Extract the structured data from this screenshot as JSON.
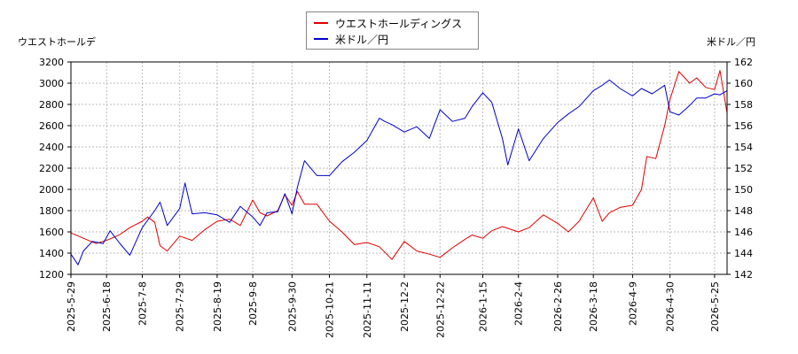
{
  "legend": {
    "series1": "ウエストホールディングス",
    "series2": "米ドル／円"
  },
  "colors": {
    "series1": "#dd0000",
    "series2": "#0000cc"
  },
  "chart_data": {
    "type": "line",
    "title": "",
    "ylabel_left": "ウエストホールデ",
    "ylabel_right": "米ドル／円",
    "ylim_left": [
      1200,
      3200
    ],
    "yticks_left": [
      1200,
      1400,
      1600,
      1800,
      2000,
      2200,
      2400,
      2600,
      2800,
      3000,
      3200
    ],
    "ylim_right": [
      142,
      162
    ],
    "yticks_right": [
      142,
      144,
      146,
      148,
      150,
      152,
      154,
      156,
      158,
      160,
      162
    ],
    "xlim": [
      "2025-05-29",
      "2026-06-01"
    ],
    "xticks": [
      "2025-5-29",
      "2025-6-18",
      "2025-7-8",
      "2025-7-29",
      "2025-8-19",
      "2025-9-8",
      "2025-9-30",
      "2025-10-21",
      "2025-11-11",
      "2025-12-2",
      "2025-12-22",
      "2026-1-15",
      "2026-2-4",
      "2026-2-26",
      "2026-3-18",
      "2026-4-9",
      "2026-4-30",
      "2026-5-25"
    ],
    "grid": true,
    "legend_position": "top-center",
    "series": [
      {
        "name": "ウエストホールディングス",
        "axis": "left",
        "points": [
          [
            "2025-05-29",
            1590
          ],
          [
            "2025-06-05",
            1540
          ],
          [
            "2025-06-12",
            1490
          ],
          [
            "2025-06-18",
            1520
          ],
          [
            "2025-06-25",
            1570
          ],
          [
            "2025-07-01",
            1640
          ],
          [
            "2025-07-08",
            1700
          ],
          [
            "2025-07-11",
            1740
          ],
          [
            "2025-07-15",
            1690
          ],
          [
            "2025-07-18",
            1470
          ],
          [
            "2025-07-22",
            1420
          ],
          [
            "2025-07-29",
            1560
          ],
          [
            "2025-08-05",
            1520
          ],
          [
            "2025-08-12",
            1620
          ],
          [
            "2025-08-19",
            1700
          ],
          [
            "2025-08-26",
            1720
          ],
          [
            "2025-09-01",
            1660
          ],
          [
            "2025-09-08",
            1900
          ],
          [
            "2025-09-12",
            1780
          ],
          [
            "2025-09-16",
            1750
          ],
          [
            "2025-09-22",
            1800
          ],
          [
            "2025-09-26",
            1950
          ],
          [
            "2025-09-30",
            1850
          ],
          [
            "2025-10-03",
            1980
          ],
          [
            "2025-10-07",
            1860
          ],
          [
            "2025-10-14",
            1860
          ],
          [
            "2025-10-21",
            1700
          ],
          [
            "2025-10-28",
            1600
          ],
          [
            "2025-11-04",
            1480
          ],
          [
            "2025-11-11",
            1500
          ],
          [
            "2025-11-18",
            1460
          ],
          [
            "2025-11-25",
            1340
          ],
          [
            "2025-12-02",
            1510
          ],
          [
            "2025-12-09",
            1420
          ],
          [
            "2025-12-16",
            1390
          ],
          [
            "2025-12-22",
            1360
          ],
          [
            "2025-12-29",
            1450
          ],
          [
            "2026-01-05",
            1530
          ],
          [
            "2026-01-09",
            1570
          ],
          [
            "2026-01-15",
            1540
          ],
          [
            "2026-01-20",
            1610
          ],
          [
            "2026-01-26",
            1650
          ],
          [
            "2026-02-04",
            1600
          ],
          [
            "2026-02-10",
            1640
          ],
          [
            "2026-02-18",
            1760
          ],
          [
            "2026-02-26",
            1680
          ],
          [
            "2026-03-04",
            1600
          ],
          [
            "2026-03-10",
            1700
          ],
          [
            "2026-03-18",
            1920
          ],
          [
            "2026-03-23",
            1700
          ],
          [
            "2026-03-27",
            1780
          ],
          [
            "2026-04-02",
            1830
          ],
          [
            "2026-04-09",
            1850
          ],
          [
            "2026-04-14",
            2000
          ],
          [
            "2026-04-17",
            2310
          ],
          [
            "2026-04-22",
            2290
          ],
          [
            "2026-04-27",
            2600
          ],
          [
            "2026-04-30",
            2850
          ],
          [
            "2026-05-05",
            3110
          ],
          [
            "2026-05-11",
            3000
          ],
          [
            "2026-05-15",
            3050
          ],
          [
            "2026-05-20",
            2960
          ],
          [
            "2026-05-25",
            2940
          ],
          [
            "2026-05-28",
            3120
          ],
          [
            "2026-06-01",
            2720
          ]
        ]
      },
      {
        "name": "米ドル／円",
        "axis": "right",
        "points": [
          [
            "2025-05-29",
            143.9
          ],
          [
            "2025-06-02",
            142.9
          ],
          [
            "2025-06-05",
            144.2
          ],
          [
            "2025-06-10",
            145.1
          ],
          [
            "2025-06-16",
            144.9
          ],
          [
            "2025-06-20",
            146.1
          ],
          [
            "2025-06-25",
            145.0
          ],
          [
            "2025-07-01",
            143.8
          ],
          [
            "2025-07-08",
            146.4
          ],
          [
            "2025-07-15",
            148.0
          ],
          [
            "2025-07-18",
            148.8
          ],
          [
            "2025-07-22",
            146.6
          ],
          [
            "2025-07-29",
            148.2
          ],
          [
            "2025-08-01",
            150.6
          ],
          [
            "2025-08-05",
            147.7
          ],
          [
            "2025-08-12",
            147.8
          ],
          [
            "2025-08-19",
            147.6
          ],
          [
            "2025-08-26",
            146.9
          ],
          [
            "2025-09-01",
            148.4
          ],
          [
            "2025-09-08",
            147.4
          ],
          [
            "2025-09-12",
            146.6
          ],
          [
            "2025-09-16",
            147.8
          ],
          [
            "2025-09-22",
            147.9
          ],
          [
            "2025-09-26",
            149.6
          ],
          [
            "2025-09-30",
            147.7
          ],
          [
            "2025-10-03",
            150.2
          ],
          [
            "2025-10-07",
            152.7
          ],
          [
            "2025-10-14",
            151.3
          ],
          [
            "2025-10-21",
            151.3
          ],
          [
            "2025-10-28",
            152.6
          ],
          [
            "2025-11-04",
            153.5
          ],
          [
            "2025-11-11",
            154.6
          ],
          [
            "2025-11-18",
            156.7
          ],
          [
            "2025-11-21",
            156.4
          ],
          [
            "2025-11-25",
            156.1
          ],
          [
            "2025-12-02",
            155.4
          ],
          [
            "2025-12-09",
            155.9
          ],
          [
            "2025-12-16",
            154.8
          ],
          [
            "2025-12-22",
            157.5
          ],
          [
            "2025-12-29",
            156.4
          ],
          [
            "2026-01-05",
            156.7
          ],
          [
            "2026-01-09",
            157.8
          ],
          [
            "2026-01-15",
            159.1
          ],
          [
            "2026-01-20",
            158.2
          ],
          [
            "2026-01-26",
            154.8
          ],
          [
            "2026-01-29",
            152.3
          ],
          [
            "2026-02-04",
            155.7
          ],
          [
            "2026-02-10",
            152.7
          ],
          [
            "2026-02-18",
            154.8
          ],
          [
            "2026-02-26",
            156.3
          ],
          [
            "2026-03-04",
            157.1
          ],
          [
            "2026-03-10",
            157.8
          ],
          [
            "2026-03-18",
            159.3
          ],
          [
            "2026-03-23",
            159.8
          ],
          [
            "2026-03-27",
            160.3
          ],
          [
            "2026-04-02",
            159.5
          ],
          [
            "2026-04-09",
            158.8
          ],
          [
            "2026-04-14",
            159.5
          ],
          [
            "2026-04-20",
            159.0
          ],
          [
            "2026-04-27",
            159.8
          ],
          [
            "2026-04-30",
            157.3
          ],
          [
            "2026-05-05",
            157.0
          ],
          [
            "2026-05-11",
            157.9
          ],
          [
            "2026-05-15",
            158.6
          ],
          [
            "2026-05-20",
            158.6
          ],
          [
            "2026-05-25",
            159.0
          ],
          [
            "2026-05-28",
            158.9
          ],
          [
            "2026-06-01",
            159.3
          ]
        ]
      }
    ]
  }
}
